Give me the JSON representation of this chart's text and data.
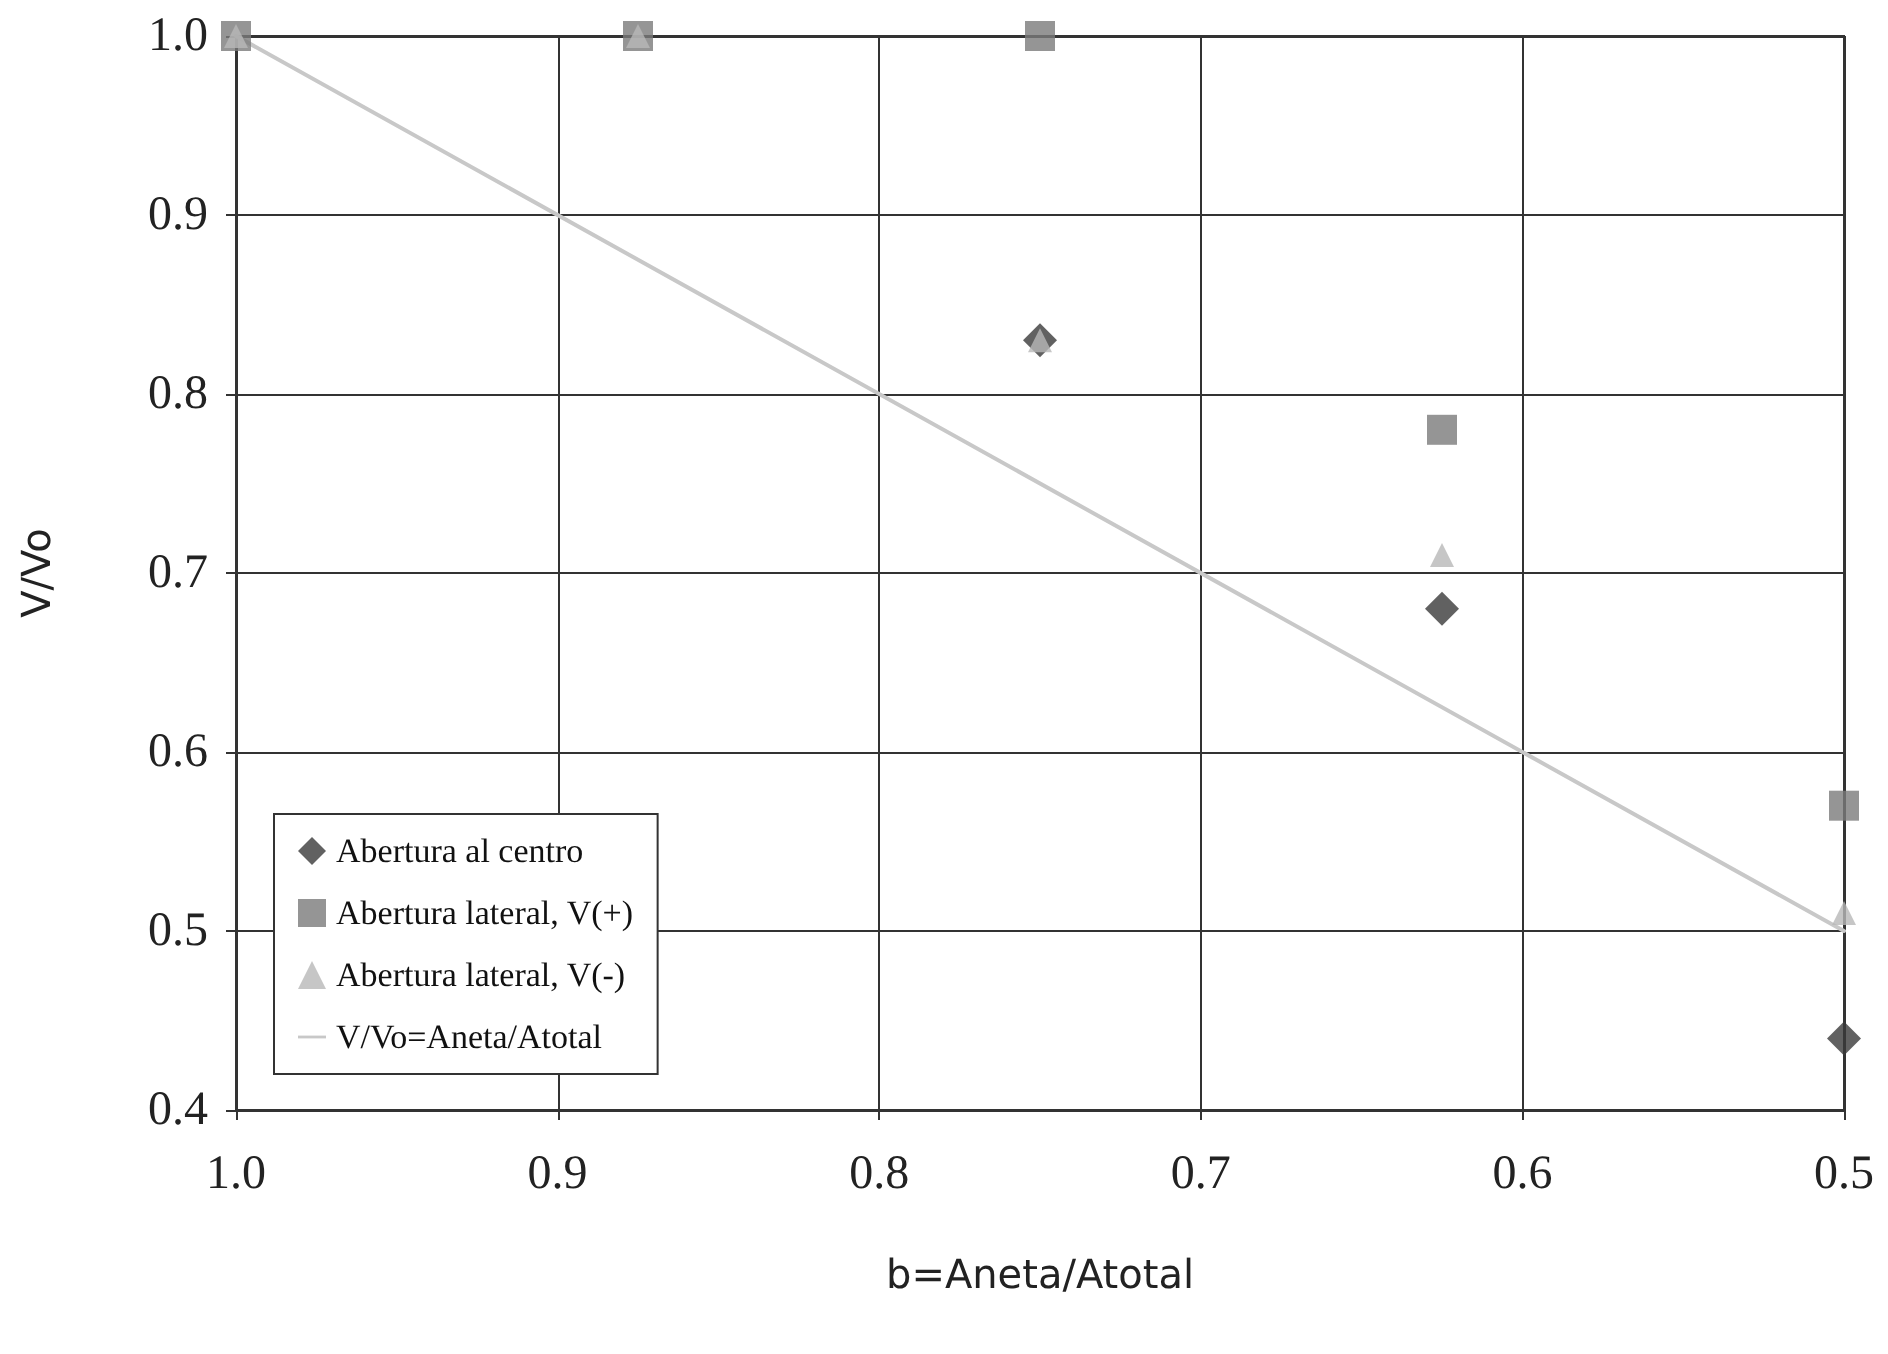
{
  "chart_data": {
    "type": "scatter",
    "xlabel": "b=Aneta/Atotal",
    "ylabel": "V/Vo",
    "x": [
      1.0,
      0.875,
      0.75,
      0.625,
      0.5
    ],
    "series": [
      {
        "name": "Abertura al centro",
        "color": "#3a3a3a",
        "marker": "diamond",
        "values": [
          null,
          null,
          0.83,
          0.68,
          0.44
        ]
      },
      {
        "name": "Abertura lateral, V(+)",
        "color": "#7a7a7a",
        "marker": "square",
        "values": [
          1.0,
          1.0,
          1.0,
          0.78,
          0.57
        ]
      },
      {
        "name": "Abertura lateral, V(-)",
        "color": "#b8b8b8",
        "marker": "triangle",
        "values": [
          1.0,
          1.0,
          0.83,
          0.71,
          0.51
        ]
      },
      {
        "name": "V/Vo=Aneta/Atotal",
        "type": "line",
        "color": "#c8c8c8",
        "marker": "none",
        "line_style": "solid",
        "x": [
          1.0,
          0.5
        ],
        "values": [
          1.0,
          0.5
        ]
      }
    ],
    "xlim": [
      1.0,
      0.5
    ],
    "xticks": [
      {
        "value": 1,
        "label": "1.0"
      },
      0.9,
      0.8,
      0.7,
      0.6,
      0.5
    ],
    "ylim": [
      0.4,
      1.0
    ],
    "yticks": [
      0.4,
      0.5,
      0.6,
      0.7,
      0.8,
      0.9,
      {
        "value": 1,
        "label": "1.0"
      }
    ],
    "grid": true,
    "legend": "bottom left"
  }
}
